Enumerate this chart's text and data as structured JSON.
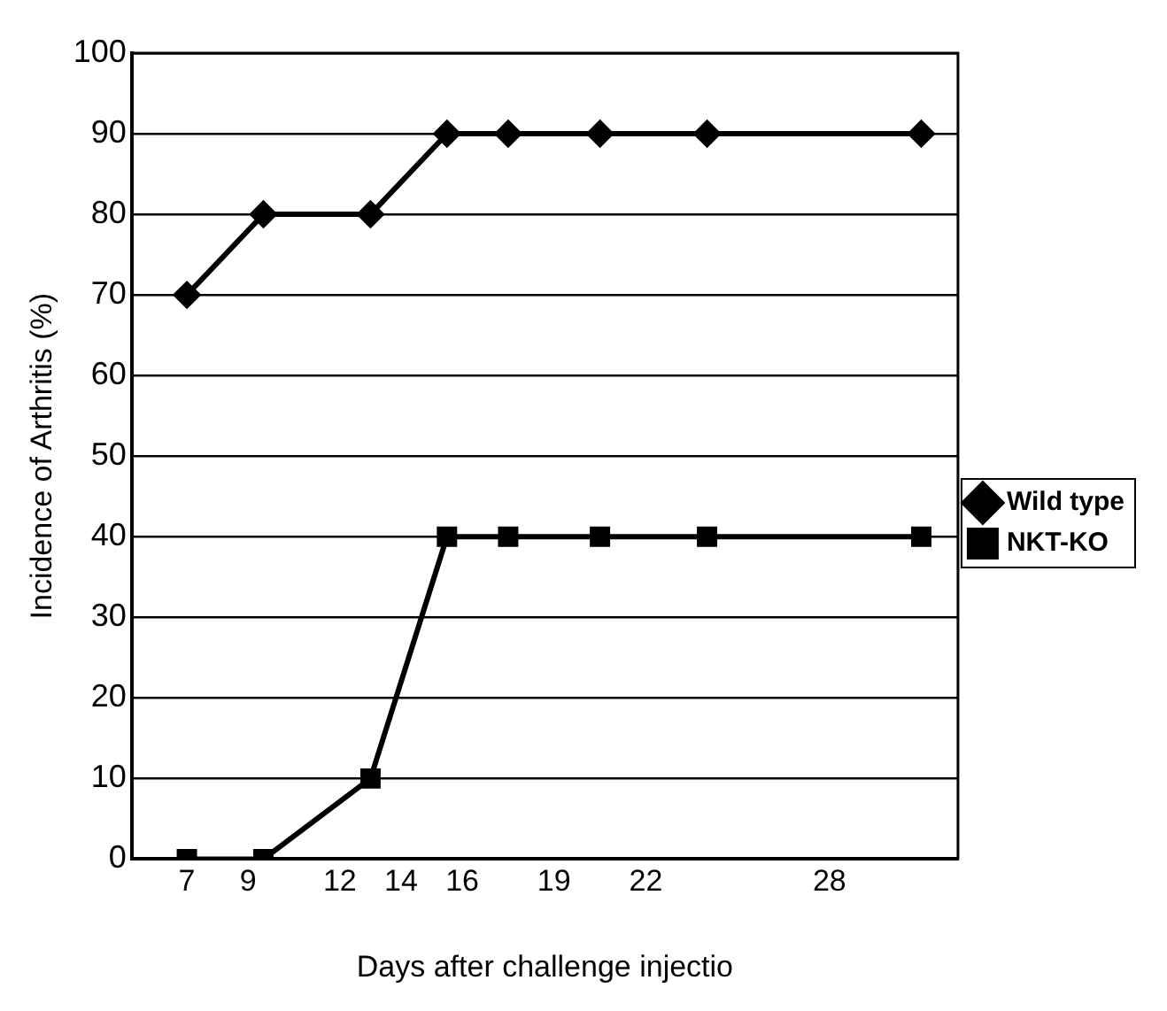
{
  "chart_data": {
    "type": "line",
    "xlabel": "Days after challenge injectio",
    "ylabel": "Incidence of Arthritis (%)",
    "x": [
      7,
      9.5,
      13,
      15.5,
      17.5,
      20.5,
      24,
      31
    ],
    "xlim": [
      5.2,
      32.2
    ],
    "xticks": [
      7,
      9,
      12,
      14,
      16,
      19,
      22,
      28
    ],
    "ylim": [
      0,
      100
    ],
    "yticks": [
      0,
      10,
      20,
      30,
      40,
      50,
      60,
      70,
      80,
      90,
      100
    ],
    "grid": "y",
    "legend": "right",
    "line_style": "solid",
    "series": [
      {
        "name": "Wild type",
        "color": "#000000",
        "marker": "diamond",
        "values": [
          70,
          80,
          80,
          90,
          90,
          90,
          90,
          90
        ]
      },
      {
        "name": "NKT-KO",
        "color": "#000000",
        "marker": "square",
        "values": [
          0,
          0,
          10,
          40,
          40,
          40,
          40,
          40
        ]
      }
    ]
  }
}
